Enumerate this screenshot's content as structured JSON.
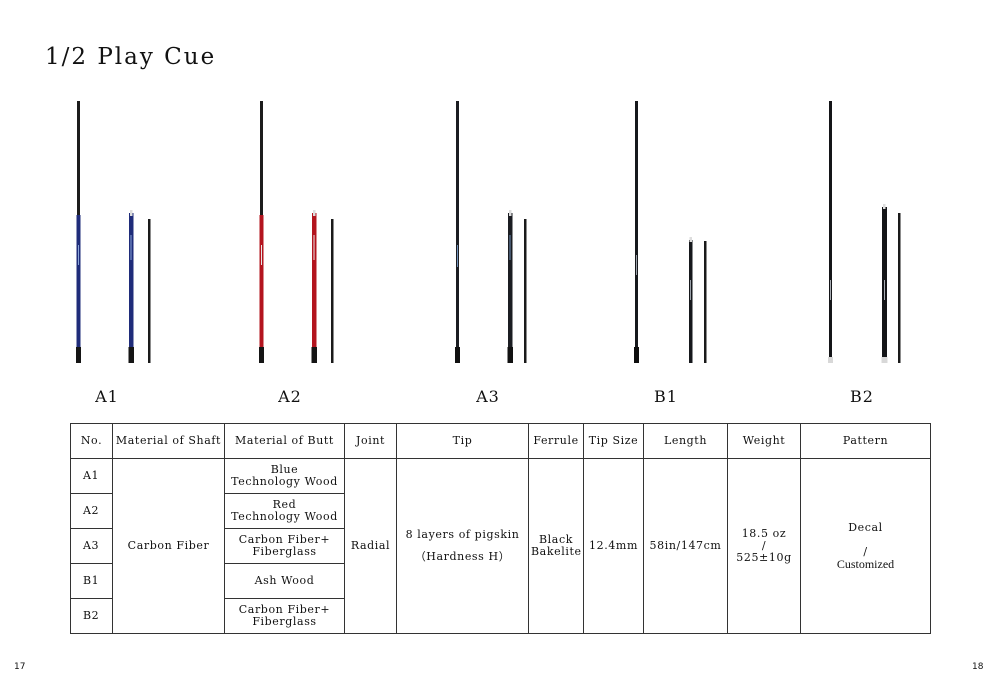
{
  "title": "1/2 Play Cue",
  "cues": [
    {
      "id": "A1",
      "label": "A1",
      "color": "#1f2c7a",
      "accent": "#2a3a9a"
    },
    {
      "id": "A2",
      "label": "A2",
      "color": "#b3141e",
      "accent": "#d0202a"
    },
    {
      "id": "A3",
      "label": "A3",
      "color": "#1b1d22",
      "accent": "#2c3038"
    },
    {
      "id": "B1",
      "label": "B1",
      "color": "#16181c",
      "accent": "#262a30"
    },
    {
      "id": "B2",
      "label": "B2",
      "color": "#141518",
      "accent": "#24262b"
    }
  ],
  "table": {
    "headers": {
      "no": "No.",
      "shaft": "Material of Shaft",
      "butt": "Material of Butt",
      "joint": "Joint",
      "tip": "Tip",
      "ferrule": "Ferrule",
      "tip_size": "Tip Size",
      "length": "Length",
      "weight": "Weight",
      "pattern": "Pattern"
    },
    "rows": [
      {
        "no": "A1",
        "butt_line1": "Blue",
        "butt_line2": "Technology Wood"
      },
      {
        "no": "A2",
        "butt_line1": "Red",
        "butt_line2": "Technology Wood"
      },
      {
        "no": "A3",
        "butt_line1": "Carbon Fiber+",
        "butt_line2": "Fiberglass"
      },
      {
        "no": "B1",
        "butt_line1": "Ash Wood",
        "butt_line2": ""
      },
      {
        "no": "B2",
        "butt_line1": "Carbon Fiber+",
        "butt_line2": "Fiberglass"
      }
    ],
    "shared": {
      "shaft": "Carbon Fiber",
      "joint": "Radial",
      "tip_line1": "8 layers of pigskin",
      "tip_line2": "（Hardness H）",
      "ferrule_line1": "Black",
      "ferrule_line2": "Bakelite",
      "tip_size": "12.4mm",
      "length": "58in/147cm",
      "weight_line1": "18.5 oz",
      "weight_line2": "/",
      "weight_line3": "525±10g",
      "pattern_line1": "Decal",
      "pattern_line2": "/",
      "pattern_line3": "Customized"
    }
  },
  "page_numbers": {
    "left": "17",
    "right": "18"
  }
}
